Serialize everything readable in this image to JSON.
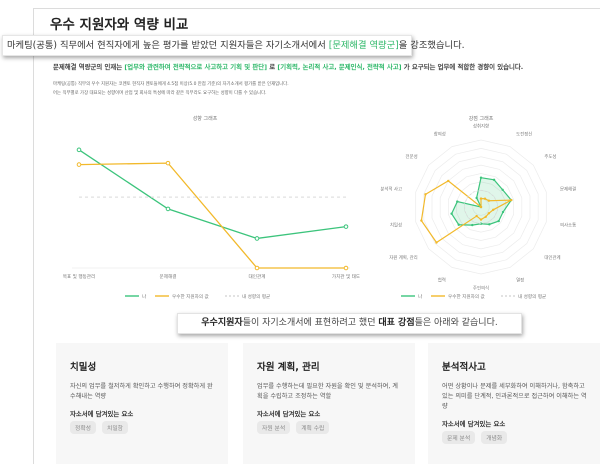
{
  "page": {
    "title": "우수 지원자와 역량 비교"
  },
  "callout": {
    "prefix": "마케팅(공통) 직무에서 현직자에게 높은 평가를 받았던 지원자들은 자기소개서에서 ",
    "highlight": "[문제해결 역량군]",
    "suffix": "을 강조했습니다."
  },
  "summary": {
    "prefix": "문제해결 역량군의 인재는 ",
    "highlight1": "[업무와 관련하여 전략적으로 사고하고 기획 및 판단]",
    "middle": " 로 ",
    "highlight2": "[기획력, 논리적 사고, 문제인식, 전략적 사고]",
    "suffix": " 가 요구되는 업무에 적합한 경향이 있습니다."
  },
  "notes": [
    "마케팅(공통) 직무의 우수 지원자는 코멘토 현직자 멘토들에게 4.5점 이상(5.0 만점 기준)의 자기소개서 평가를 받은 인재입니다.",
    "어는 직무별로 가장 대표되는 성향이며 산업 및 회사의 특성에 따라 같은 직무라도 요구하는 성향이 다를 수 있습니다."
  ],
  "colors": {
    "me": "#3cc47c",
    "top": "#f2b92b",
    "avg": "#d9d9d9",
    "accent": "#2fb86a"
  },
  "chart_data": [
    {
      "type": "line",
      "title": "성향 그래프",
      "categories": [
        "목표 및 행동관리",
        "문제해결",
        "대인관계",
        "가치관 및 태도"
      ],
      "series": [
        {
          "name": "나",
          "values": [
            4.6,
            2.6,
            1.6,
            2.0
          ]
        },
        {
          "name": "우수한 지원자의 값",
          "values": [
            4.1,
            4.15,
            0.6,
            0.6
          ]
        },
        {
          "name": "내 성향의 평균",
          "values": [
            3.0,
            3.0,
            3.0,
            3.0
          ]
        }
      ],
      "ylim": [
        0.6,
        5
      ],
      "legend": [
        "나",
        "우수한 지원자의 값",
        "내 성향의 평균"
      ],
      "legend_position": "bottom"
    },
    {
      "type": "radar",
      "title": "강점 그래프",
      "categories": [
        "성취지향",
        "도전정신",
        "주도성",
        "문제해결",
        "의사소통",
        "대인관계",
        "열정",
        "주인의식",
        "협력",
        "자원 계획, 관리",
        "치밀성",
        "분석적 사고",
        "전문성",
        "창의성"
      ],
      "series": [
        {
          "name": "나",
          "values": [
            3.5,
            3.6,
            3.3,
            3.7,
            2.7,
            2.7,
            2.3,
            2.0,
            2.4,
            3.4,
            3.6,
            2.9,
            0.0,
            1.2
          ]
        },
        {
          "name": "우수한 지원자의 값",
          "values": [
            1.0,
            1.1,
            1.2,
            3.7,
            1.5,
            1.2,
            1.3,
            1.5,
            1.2,
            6.8,
            7.3,
            6.8,
            5.0,
            0.0
          ]
        },
        {
          "name": "내 성향의 평균",
          "values": [
            2,
            2,
            2,
            2,
            2,
            2,
            2,
            2,
            2,
            2,
            2,
            2,
            2,
            2
          ]
        }
      ],
      "rlim": [
        0,
        8
      ],
      "legend": [
        "나",
        "우수한 지원자의 값",
        "내 성향의 평균"
      ],
      "legend_position": "bottom"
    }
  ],
  "banner": {
    "bold1": "우수지원자",
    "text1": "들이 자기소개서에 표현하려고 했던 ",
    "bold2": "대표 강점",
    "text2": "들은 아래와 같습니다."
  },
  "cards": [
    {
      "title": "치밀성",
      "desc": "자신의 업무를 철저하게 확인하고 수행하여 정확하게 완수해내는 역량",
      "sub": "자소서에 담겨있는 요소",
      "tags": [
        "정확성",
        "치밀함"
      ]
    },
    {
      "title": "자원 계획, 관리",
      "desc": "업무를 수행하는데 필요한 자원을 확인 및 분석하여, 계획을 수립하고 조정하는 역할",
      "sub": "자소서에 담겨있는 요소",
      "tags": [
        "자원 분석",
        "계획 수립"
      ]
    },
    {
      "title": "분석적사고",
      "desc": "어떤 상황이나 문제를 세부화하여 이해하거나, 함축하고 있는 의미를 단계적, 인과론적으로 접근하여 이해하는 역량",
      "sub": "자소서에 담겨있는 요소",
      "tags": [
        "문제 분석",
        "개념화"
      ]
    }
  ]
}
